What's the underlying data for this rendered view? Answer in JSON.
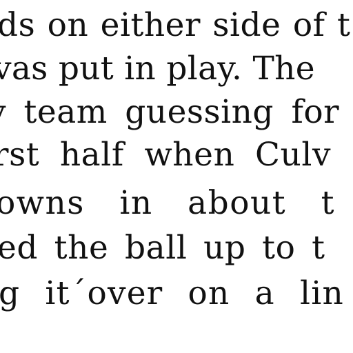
{
  "document": {
    "lines": [
      "ds on either side of t",
      "vas put in play.  The",
      "y team guessing for",
      "rst half when Culv",
      "owns in about t",
      "ed the ball up to t",
      "g it´over on a lin"
    ]
  }
}
